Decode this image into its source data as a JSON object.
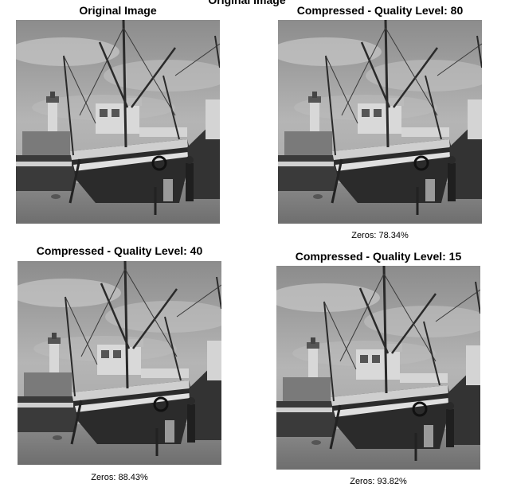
{
  "figure": {
    "title": "Original Image"
  },
  "panels": [
    {
      "title": "Original Image",
      "caption": ""
    },
    {
      "title": "Compressed - Quality Level: 80",
      "caption": "Zeros: 78.34%"
    },
    {
      "title": "Compressed - Quality Level: 40",
      "caption": "Zeros: 88.43%"
    },
    {
      "title": "Compressed - Quality Level: 15",
      "caption": "Zeros: 93.82%"
    }
  ],
  "image_subject": "grayscale-boat-photo",
  "colors": {
    "background": "#ffffff",
    "text": "#000000"
  }
}
